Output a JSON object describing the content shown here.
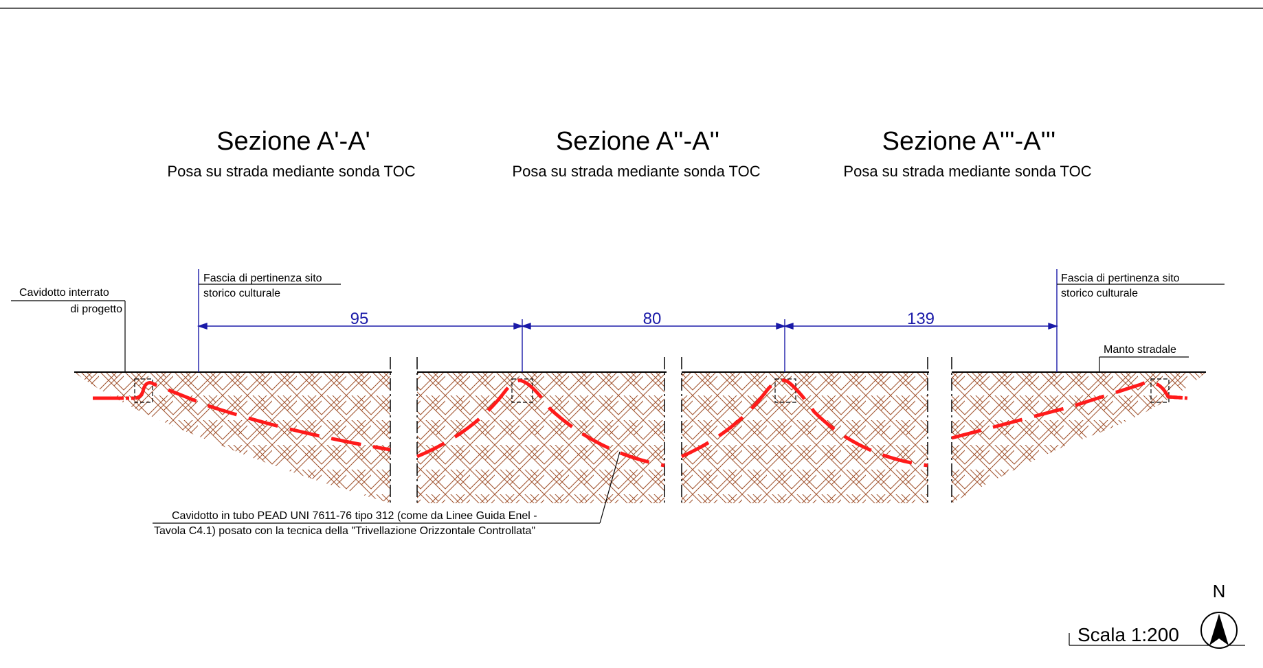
{
  "sections": [
    {
      "title": "Sezione A'-A'",
      "subtitle": "Posa su strada mediante sonda TOC"
    },
    {
      "title": "Sezione A''-A''",
      "subtitle": "Posa su strada mediante sonda TOC"
    },
    {
      "title": "Sezione A'''-A'''",
      "subtitle": "Posa su strada mediante sonda TOC"
    }
  ],
  "labels": {
    "cavidotto_interrato_1": "Cavidotto interrato",
    "cavidotto_interrato_2": "di progetto",
    "fascia_left_1": "Fascia di pertinenza sito",
    "fascia_left_2": "storico culturale",
    "fascia_right_1": "Fascia di pertinenza sito",
    "fascia_right_2": "storico culturale",
    "manto_stradale": "Manto stradale",
    "pipe_note_1": "Cavidotto in tubo PEAD UNI 7611-76  tipo 312 (come da Linee Guida Enel -",
    "pipe_note_2": "Tavola C4.1) posato con la tecnica della \"Trivellazione Orizzontale Controllata\""
  },
  "dimensions": [
    "95",
    "80",
    "139"
  ],
  "scale": {
    "label": "Scala 1:200",
    "north": "N"
  },
  "colors": {
    "pipe": "#ff1a1a",
    "hatch": "#a0522d",
    "dimension": "#1a1aa8",
    "line": "#000000"
  }
}
